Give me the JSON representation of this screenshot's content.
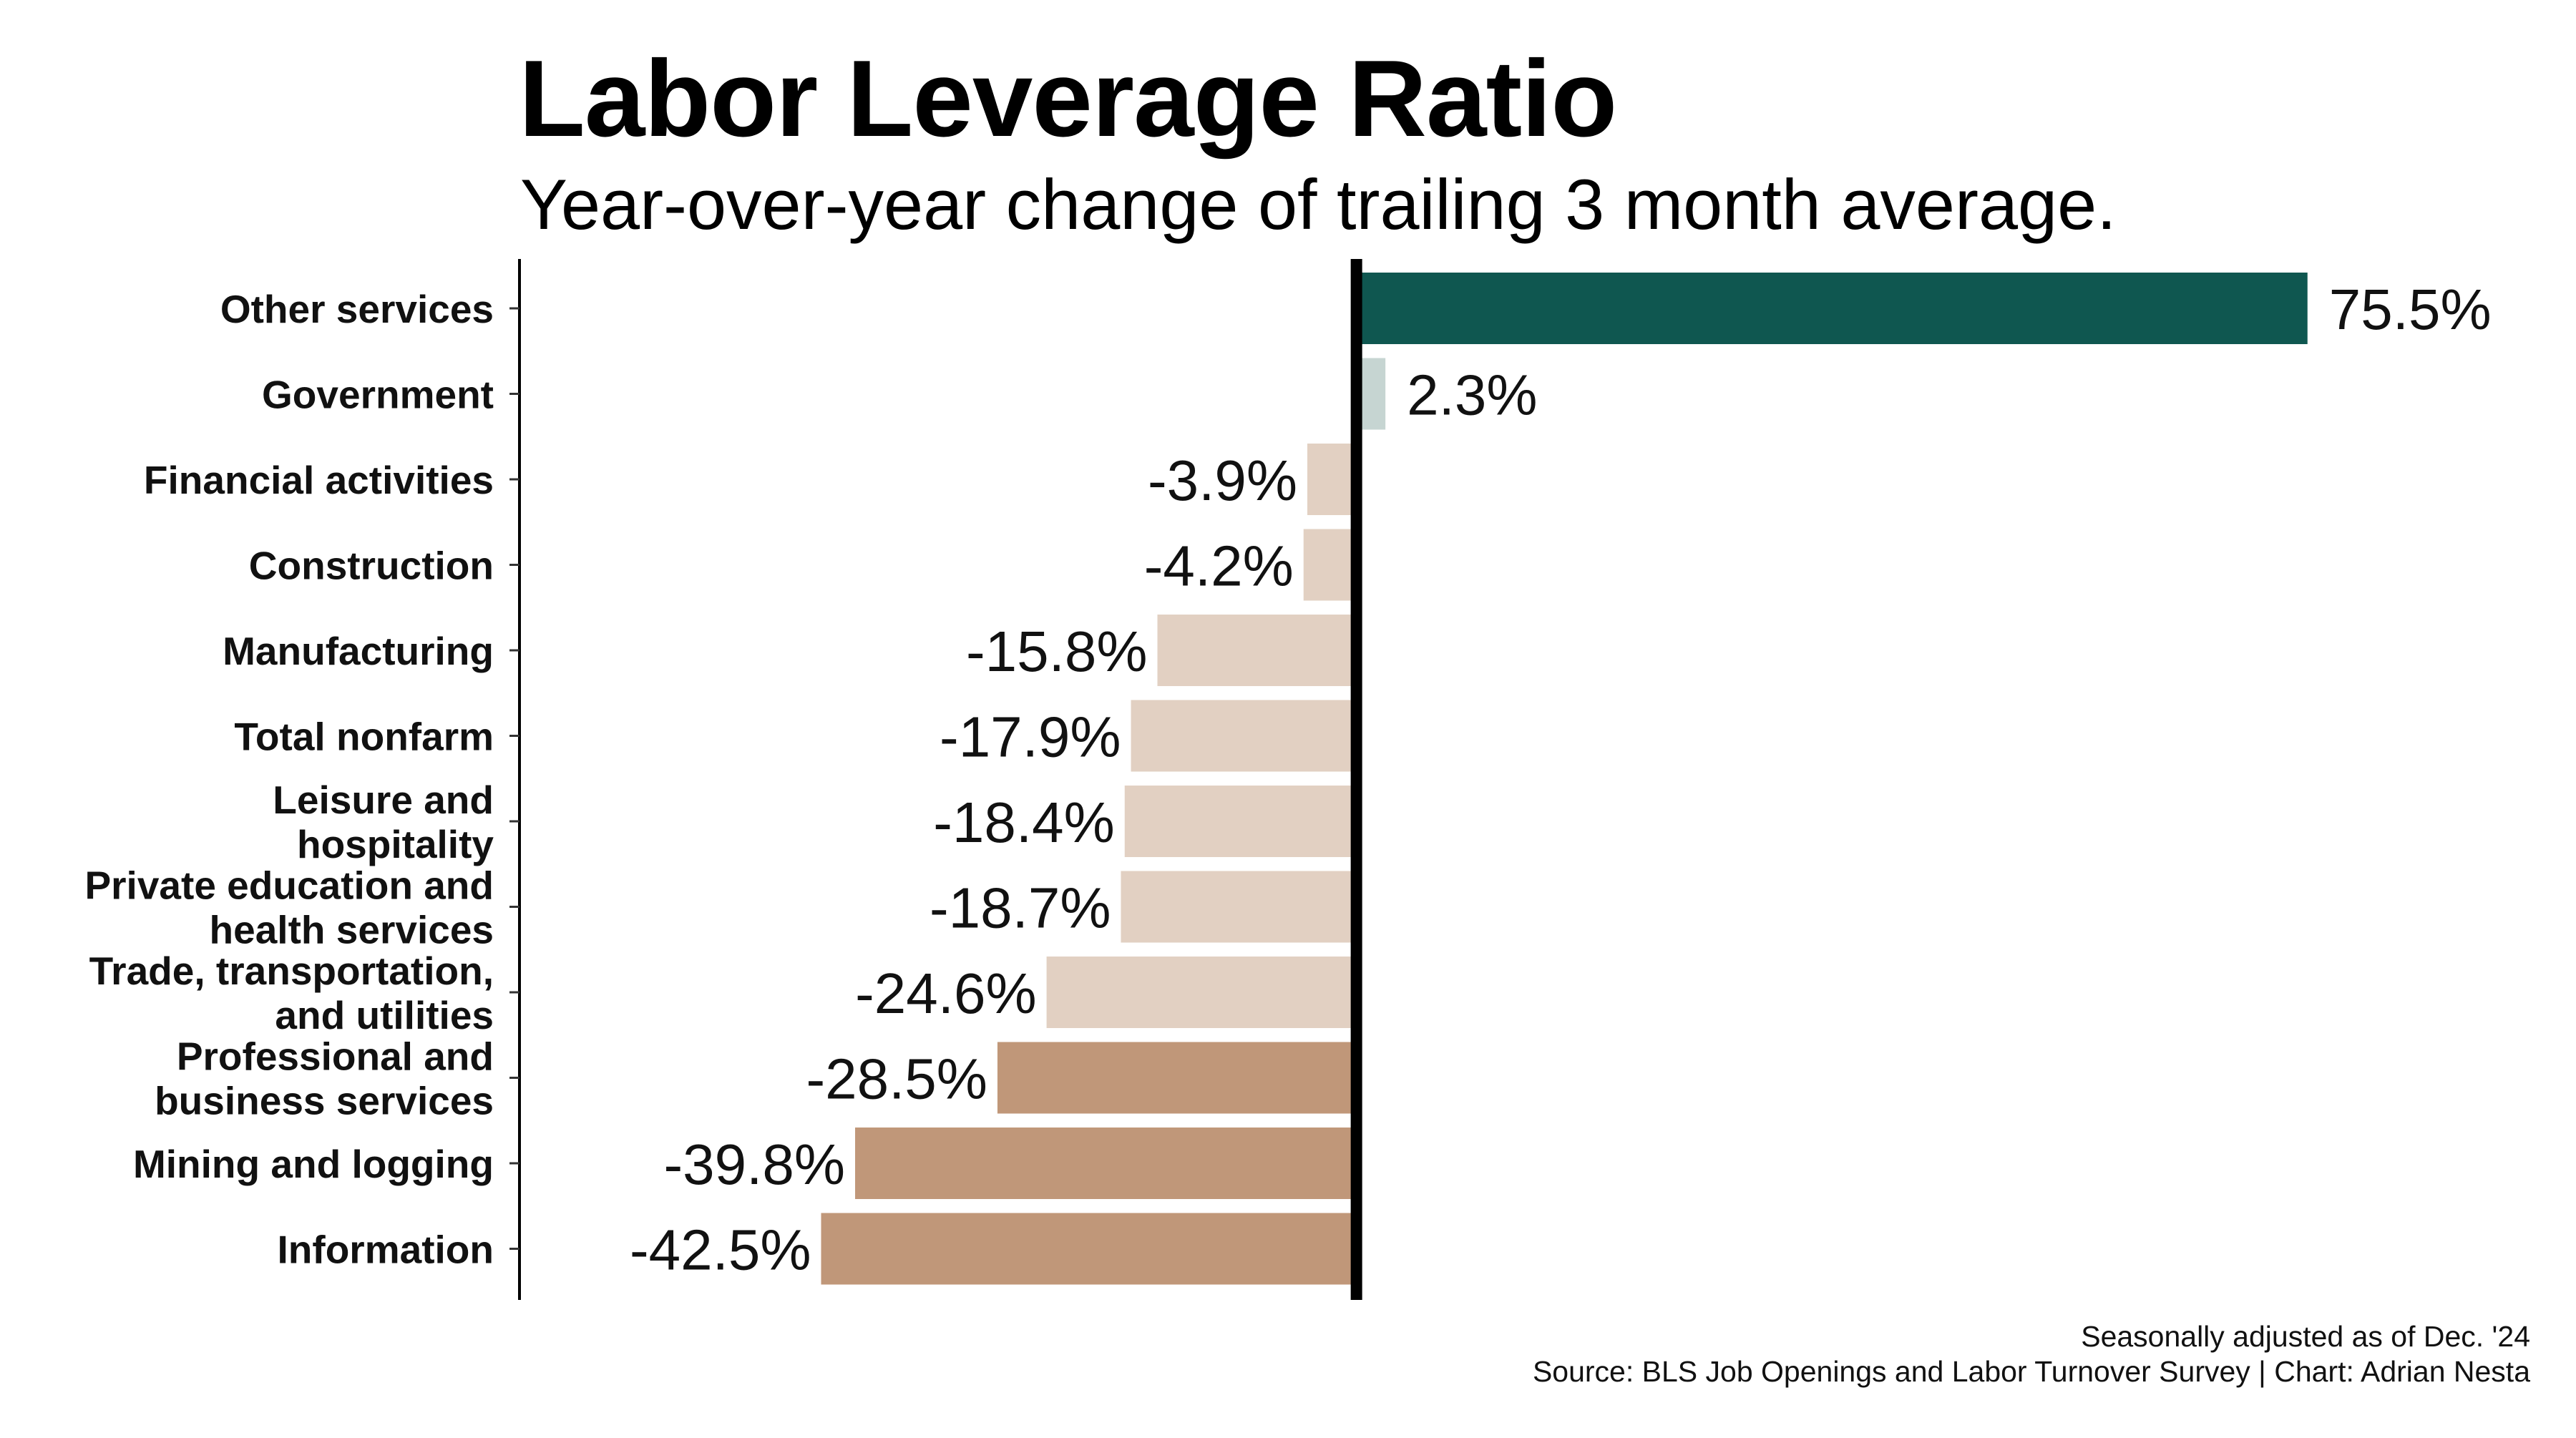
{
  "chart_data": {
    "type": "bar",
    "orientation": "horizontal",
    "title": "Labor Leverage Ratio",
    "subtitle": "Year-over-year change of trailing 3 month average.",
    "categories": [
      [
        "Other services"
      ],
      [
        "Government"
      ],
      [
        "Financial activities"
      ],
      [
        "Construction"
      ],
      [
        "Manufacturing"
      ],
      [
        "Total nonfarm"
      ],
      [
        "Leisure and",
        "hospitality"
      ],
      [
        "Private education and",
        "health services"
      ],
      [
        "Trade, transportation,",
        "and utilities"
      ],
      [
        "Professional and",
        "business services"
      ],
      [
        "Mining and logging"
      ],
      [
        "Information"
      ]
    ],
    "values": [
      75.5,
      2.3,
      -3.9,
      -4.2,
      -15.8,
      -17.9,
      -18.4,
      -18.7,
      -24.6,
      -28.5,
      -39.8,
      -42.5
    ],
    "value_labels": [
      "75.5%",
      "2.3%",
      "-3.9%",
      "-4.2%",
      "-15.8%",
      "-17.9%",
      "-18.4%",
      "-18.7%",
      "-24.6%",
      "-28.5%",
      "-39.8%",
      "-42.5%"
    ],
    "xlim": [
      -66.5,
      90
    ],
    "grid": false,
    "legend": "none",
    "colors": {
      "strong_positive": "#0f5750",
      "weak_positive": "#c6d5d2",
      "mild_negative": "#e2d0c2",
      "strong_negative": "#c09779",
      "zero_line": "#000000"
    },
    "strong_negative_threshold": -25
  },
  "caption": {
    "line1": "Seasonally adjusted as of Dec. '24",
    "line2": "Source: BLS Job Openings and Labor Turnover Survey | Chart: Adrian Nesta"
  }
}
